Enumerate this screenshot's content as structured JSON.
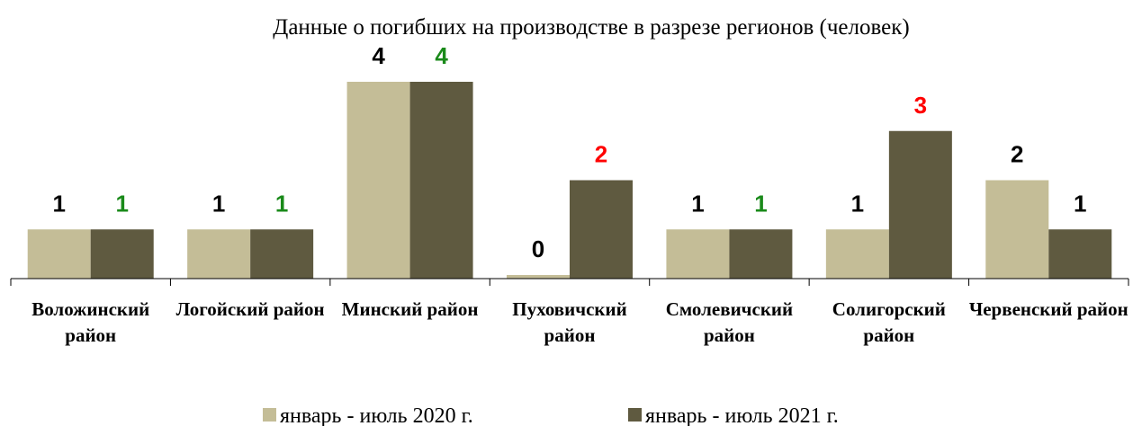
{
  "chart_data": {
    "type": "bar",
    "title": "Данные о погибших на производстве в разрезе регионов   (человек)",
    "categories": [
      "Воложинский район",
      "Логойский район",
      "Минский район",
      "Пуховичский район",
      "Смолевичский район",
      "Солигорский район",
      "Червенский район"
    ],
    "series": [
      {
        "name": "январь - июль 2020 г.",
        "color": "#c4bd97",
        "values": [
          1,
          1,
          4,
          0,
          1,
          1,
          2
        ],
        "value_label_colors": [
          "#000000",
          "#000000",
          "#000000",
          "#000000",
          "#000000",
          "#000000",
          "#000000"
        ]
      },
      {
        "name": "январь - июль 2021 г.",
        "color": "#5f5a40",
        "values": [
          1,
          1,
          4,
          2,
          1,
          3,
          1
        ],
        "value_label_colors": [
          "#1a8a1a",
          "#1a8a1a",
          "#1a8a1a",
          "#ff0000",
          "#1a8a1a",
          "#ff0000",
          "#000000"
        ]
      }
    ]
  }
}
